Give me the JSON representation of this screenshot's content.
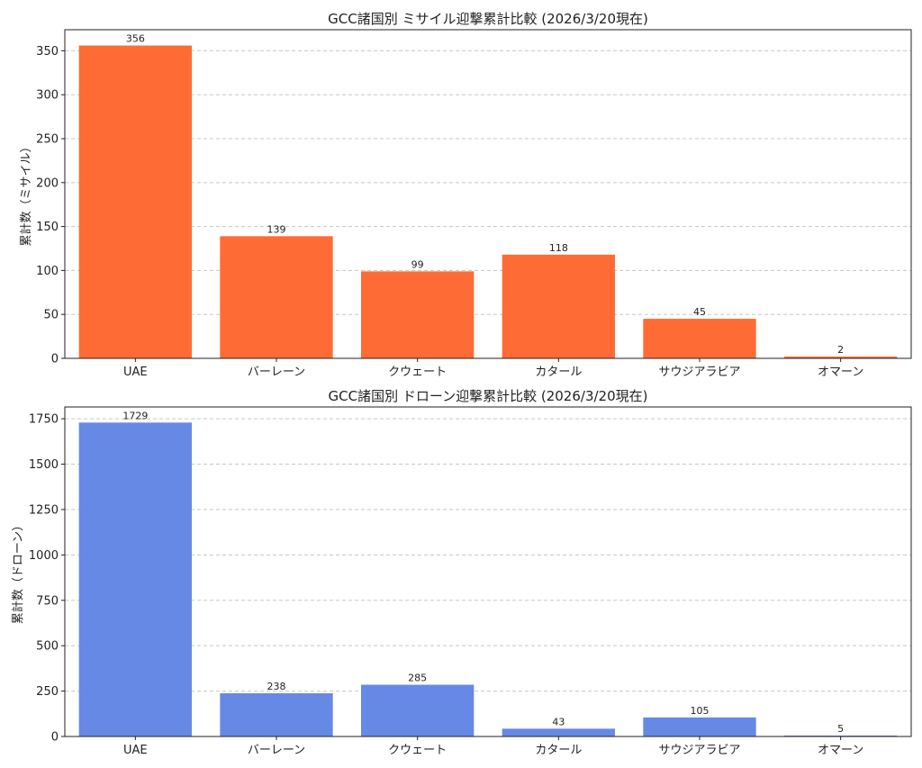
{
  "chart_data": [
    {
      "type": "bar",
      "title": "GCC諸国別 ミサイル迎撃累計比較 (2026/3/20現在)",
      "xlabel": "",
      "ylabel": "累計数（ミサイル）",
      "categories": [
        "UAE",
        "バーレーン",
        "クウェート",
        "カタール",
        "サウジアラビア",
        "オマーン"
      ],
      "values": [
        356,
        139,
        99,
        118,
        45,
        2
      ],
      "ylim": [
        0,
        374
      ],
      "yticks": [
        0,
        50,
        100,
        150,
        200,
        250,
        300,
        350
      ],
      "color": "#FF6B35",
      "grid": true
    },
    {
      "type": "bar",
      "title": "GCC諸国別 ドローン迎撃累計比較 (2026/3/20現在)",
      "xlabel": "",
      "ylabel": "累計数（ドローン）",
      "categories": [
        "UAE",
        "バーレーン",
        "クウェート",
        "カタール",
        "サウジアラビア",
        "オマーン"
      ],
      "values": [
        1729,
        238,
        285,
        43,
        105,
        5
      ],
      "ylim": [
        0,
        1815
      ],
      "yticks": [
        0,
        250,
        500,
        750,
        1000,
        1250,
        1500,
        1750
      ],
      "color": "#6789E6",
      "grid": true
    }
  ]
}
